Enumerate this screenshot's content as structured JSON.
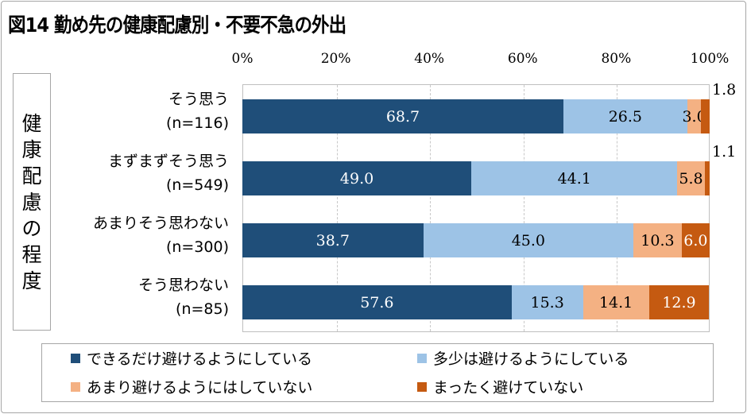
{
  "title": "図14 勤め先の健康配慮別・不要不急の外出",
  "chart_data": {
    "type": "bar",
    "orientation": "horizontal",
    "stacked": true,
    "title": "図14 勤め先の健康配慮別・不要不急の外出",
    "ylabel": "健康配慮の程度",
    "xlim": [
      0,
      100
    ],
    "xticks": [
      "0%",
      "20%",
      "40%",
      "60%",
      "80%",
      "100%"
    ],
    "grid": true,
    "legend_position": "bottom",
    "categories": [
      {
        "label": "そう思う",
        "n": "(n=116)"
      },
      {
        "label": "まずまずそう思う",
        "n": "(n=549)"
      },
      {
        "label": "あまりそう思わない",
        "n": "(n=300)"
      },
      {
        "label": "そう思わない",
        "n": "(n=85)"
      }
    ],
    "series": [
      {
        "name": "できるだけ避けるようにしている",
        "color": "#1f4e79",
        "label_color": "#ffffff",
        "values": [
          68.7,
          49.0,
          38.7,
          57.6
        ]
      },
      {
        "name": "多少は避けるようにしている",
        "color": "#9dc3e6",
        "label_color": "#000000",
        "values": [
          26.5,
          44.1,
          45.0,
          15.3
        ]
      },
      {
        "name": "あまり避けるようにはしていない",
        "color": "#f4b183",
        "label_color": "#000000",
        "values": [
          3.0,
          5.8,
          10.3,
          14.1
        ]
      },
      {
        "name": "まったく避けていない",
        "color": "#c55a11",
        "label_color": "#ffffff",
        "values": [
          1.8,
          1.1,
          6.0,
          12.9
        ]
      }
    ]
  }
}
